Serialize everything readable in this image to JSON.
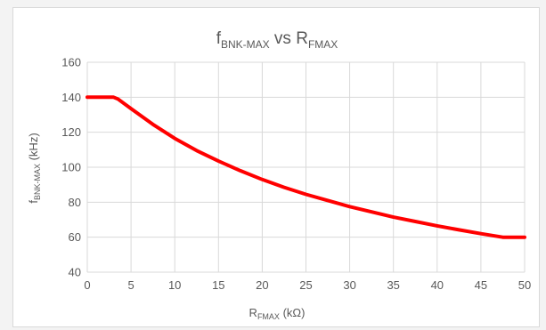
{
  "chart_data": {
    "type": "line",
    "title": {
      "f": "f",
      "f_sub": "BNK-MAX",
      "vs": " vs ",
      "r": "R",
      "r_sub": "FMAX"
    },
    "xlabel": {
      "main": "R",
      "sub": "FMAX",
      "unit": " (kΩ)"
    },
    "ylabel": {
      "main": "f",
      "sub": "BNK-MAX",
      "unit": " (kHz)"
    },
    "xlim": [
      0,
      50
    ],
    "ylim": [
      40,
      160
    ],
    "xticks": [
      "0",
      "5",
      "10",
      "15",
      "20",
      "25",
      "30",
      "35",
      "40",
      "45",
      "50"
    ],
    "yticks": [
      "40",
      "60",
      "80",
      "100",
      "120",
      "140",
      "160"
    ],
    "grid": true,
    "legend": "none",
    "series": [
      {
        "color": "#ff0000",
        "x": [
          0,
          3,
          3.5,
          5,
          7.5,
          10,
          12.5,
          15,
          17.5,
          20,
          22.5,
          25,
          27.5,
          30,
          32.5,
          35,
          37.5,
          40,
          42.5,
          45,
          47.5,
          48,
          50
        ],
        "y": [
          140,
          140,
          139,
          133.5,
          124.5,
          116.5,
          109.5,
          103.5,
          98,
          93,
          88.5,
          84.5,
          81,
          77.5,
          74.5,
          71.5,
          69,
          66.5,
          64.2,
          62,
          60,
          60,
          60
        ]
      }
    ]
  }
}
